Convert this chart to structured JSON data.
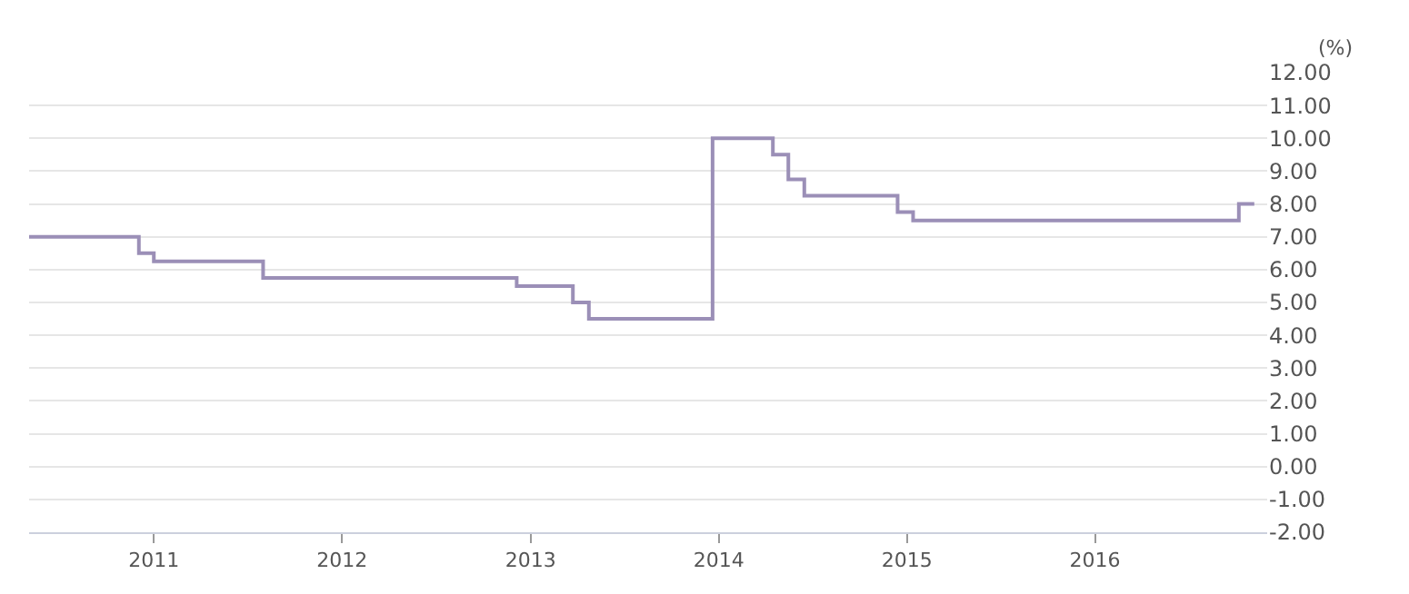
{
  "chart_data": {
    "type": "step",
    "ylabel": "(%)",
    "x": [
      "2010-05-04",
      "2010-12-03",
      "2011-01-01",
      "2011-08-01",
      "2012-12-05",
      "2013-03-24",
      "2013-04-24",
      "2013-12-20",
      "2014-04-16",
      "2014-05-16",
      "2014-06-16",
      "2014-12-14",
      "2015-01-13",
      "2016-10-06",
      "2016-11-05"
    ],
    "series": [
      {
        "color": "#9b8fb7",
        "values": [
          7.0,
          6.5,
          6.25,
          5.75,
          5.5,
          5.0,
          4.5,
          10.0,
          9.5,
          8.75,
          8.25,
          7.75,
          7.5,
          8.0,
          8.0
        ]
      }
    ],
    "xlim": [
      "2010-05-04",
      "2016-11-30"
    ],
    "xticks": [
      {
        "value": "2011-01-01",
        "label": "2011"
      },
      {
        "value": "2012-01-01",
        "label": "2012"
      },
      {
        "value": "2013-01-01",
        "label": "2013"
      },
      {
        "value": "2014-01-01",
        "label": "2014"
      },
      {
        "value": "2015-01-01",
        "label": "2015"
      },
      {
        "value": "2016-01-01",
        "label": "2016"
      }
    ],
    "ylim": [
      -2,
      12
    ],
    "yticks": [
      {
        "value": -2,
        "label": "-2.00"
      },
      {
        "value": -1,
        "label": "-1.00"
      },
      {
        "value": 0,
        "label": "0.00"
      },
      {
        "value": 1,
        "label": "1.00"
      },
      {
        "value": 2,
        "label": "2.00"
      },
      {
        "value": 3,
        "label": "3.00"
      },
      {
        "value": 4,
        "label": "4.00"
      },
      {
        "value": 5,
        "label": "5.00"
      },
      {
        "value": 6,
        "label": "6.00"
      },
      {
        "value": 7,
        "label": "7.00"
      },
      {
        "value": 8,
        "label": "8.00"
      },
      {
        "value": 9,
        "label": "9.00"
      },
      {
        "value": 10,
        "label": "10.00"
      },
      {
        "value": 11,
        "label": "11.00"
      },
      {
        "value": 12,
        "label": "12.00"
      }
    ],
    "grid": "y",
    "marker": "none",
    "line_style": "solid"
  }
}
